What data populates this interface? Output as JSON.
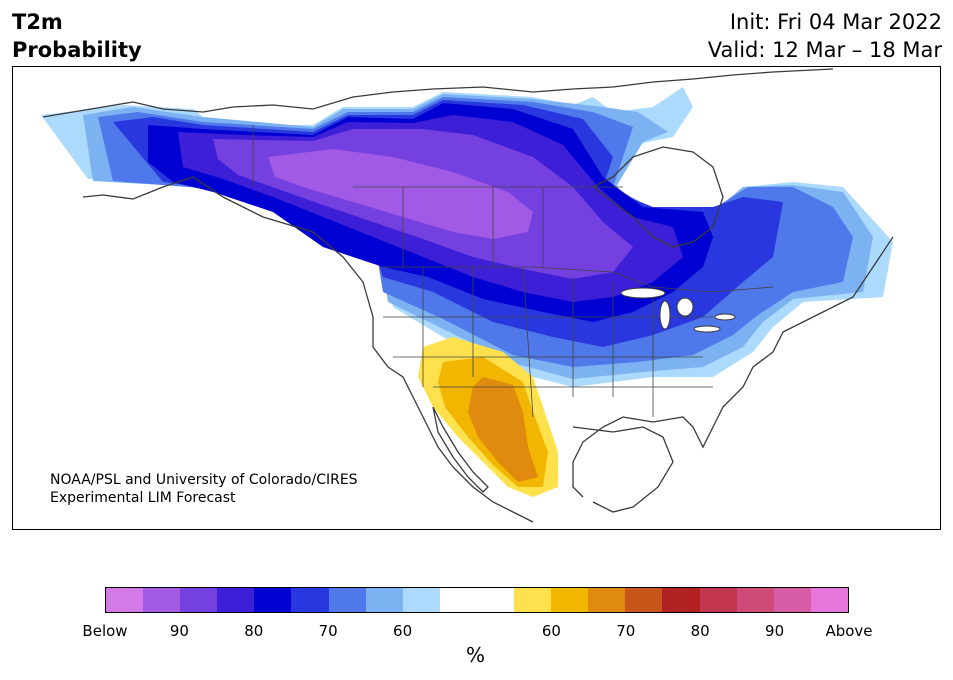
{
  "title": {
    "left_line1": "T2m",
    "left_line2": "Probability",
    "init": "Init: Fri 04 Mar 2022",
    "valid": "Valid: 12 Mar – 18 Mar"
  },
  "credit": {
    "line1": "NOAA/PSL and University of Colorado/CIRES",
    "line2": "Experimental LIM Forecast"
  },
  "colorbar": {
    "colors": [
      "#d47ae8",
      "#a05ae6",
      "#7440e0",
      "#3c1fd6",
      "#0000d2",
      "#2838de",
      "#4f78ea",
      "#7cb2f2",
      "#acdafc",
      "#ffffff",
      "#ffffff",
      "#ffe14d",
      "#f2b600",
      "#e08b0f",
      "#c8561a",
      "#b22222",
      "#c33650",
      "#ce4a78",
      "#d65ca8",
      "#e676da"
    ],
    "labels": [
      "Below",
      "90",
      "80",
      "70",
      "60",
      "60",
      "70",
      "80",
      "90",
      "Above"
    ],
    "unit": "%"
  },
  "map": {
    "regions": [
      {
        "name": "alaska-north-blue-zone",
        "color": "#7cb2f2"
      },
      {
        "name": "canada-purple-core",
        "color": "#a05ae6"
      },
      {
        "name": "northern-plains-below-band",
        "color": "#0000d2"
      },
      {
        "name": "eastern-canada-blue-zone",
        "color": "#4f78ea"
      },
      {
        "name": "southwest-above-zone",
        "color": "#f2b600"
      }
    ]
  }
}
